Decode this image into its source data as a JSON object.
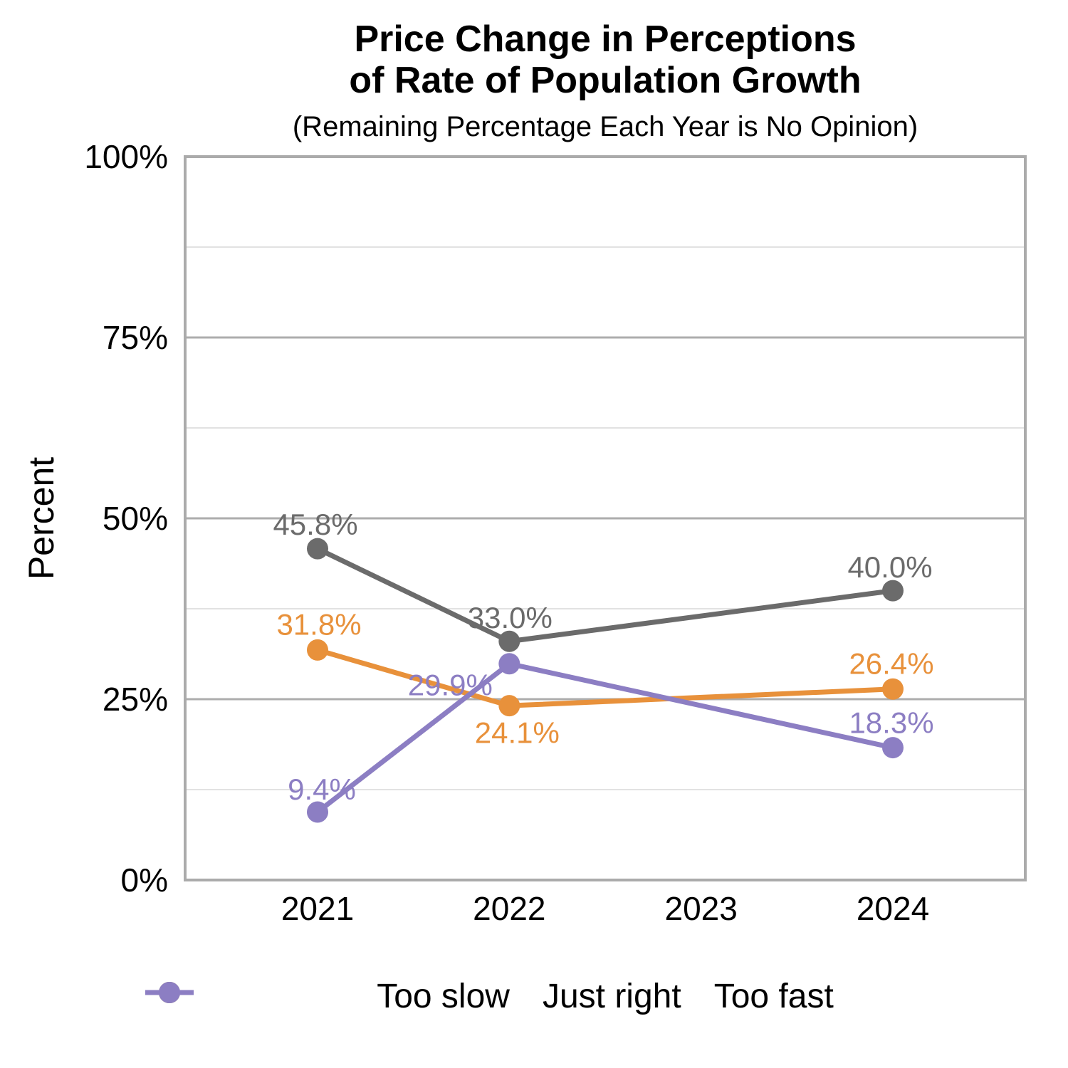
{
  "chart_data": {
    "type": "line",
    "title": "Price Change in Perceptions\nof Rate of Population Growth",
    "subtitle": "(Remaining Percentage Each Year is No Opinion)",
    "ylabel": "Percent",
    "xlabel": "",
    "x_categories": [
      "2021",
      "2022",
      "2023",
      "2024"
    ],
    "y_ticks": [
      {
        "value": 0,
        "label": "0%"
      },
      {
        "value": 25,
        "label": "25%"
      },
      {
        "value": 50,
        "label": "50%"
      },
      {
        "value": 75,
        "label": "75%"
      },
      {
        "value": 100,
        "label": "100%"
      }
    ],
    "ylim": [
      0,
      100
    ],
    "grid": true,
    "legend_position": "bottom",
    "series": [
      {
        "name": "Too slow",
        "color": "#E8913B",
        "points": [
          {
            "x": "2021",
            "y": 31.8,
            "label": "31.8%"
          },
          {
            "x": "2022",
            "y": 24.1,
            "label": "24.1%"
          },
          {
            "x": "2024",
            "y": 26.4,
            "label": "26.4%"
          }
        ]
      },
      {
        "name": "Just right",
        "color": "#6B6B6B",
        "points": [
          {
            "x": "2021",
            "y": 45.8,
            "label": "45.8%"
          },
          {
            "x": "2022",
            "y": 33.0,
            "label": "33.0%"
          },
          {
            "x": "2024",
            "y": 40.0,
            "label": "40.0%"
          }
        ]
      },
      {
        "name": "Too fast",
        "color": "#8C7EC3",
        "points": [
          {
            "x": "2021",
            "y": 9.4,
            "label": "9.4%"
          },
          {
            "x": "2022",
            "y": 29.9,
            "label": "29.9%"
          },
          {
            "x": "2024",
            "y": 18.3,
            "label": "18.3%"
          }
        ]
      }
    ],
    "colors": {
      "plot_border": "#ABABAB",
      "grid_major": "#ADADAD",
      "grid_minor": "#E2E2E2",
      "background": "#FFFFFF",
      "text": "#000000"
    }
  }
}
